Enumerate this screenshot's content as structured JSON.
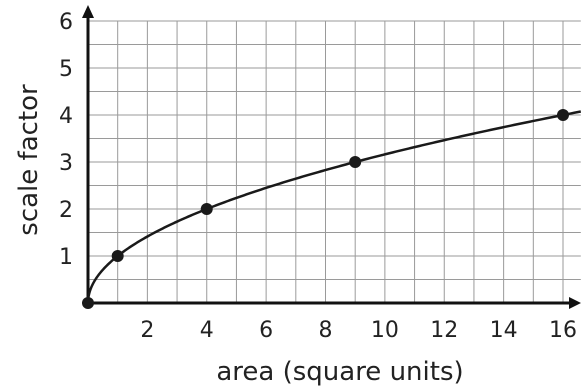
{
  "chart_data": {
    "type": "line",
    "xlabel": "area (square units)",
    "ylabel": "scale factor",
    "xlim": [
      0,
      16.6
    ],
    "ylim": [
      0,
      6
    ],
    "x_grid_step": 1,
    "y_grid_step": 0.5,
    "x_ticks": [
      2,
      4,
      6,
      8,
      10,
      12,
      14,
      16
    ],
    "y_ticks": [
      1,
      2,
      3,
      4,
      5,
      6
    ],
    "grid": true,
    "curve": "y = sqrt(x)",
    "points": [
      {
        "x": 0,
        "y": 0
      },
      {
        "x": 1,
        "y": 1
      },
      {
        "x": 4,
        "y": 2
      },
      {
        "x": 9,
        "y": 3
      },
      {
        "x": 16,
        "y": 4
      }
    ],
    "colors": {
      "line": "#1a1a1a",
      "grid": "#9a9a9a",
      "axis": "#111111"
    }
  }
}
